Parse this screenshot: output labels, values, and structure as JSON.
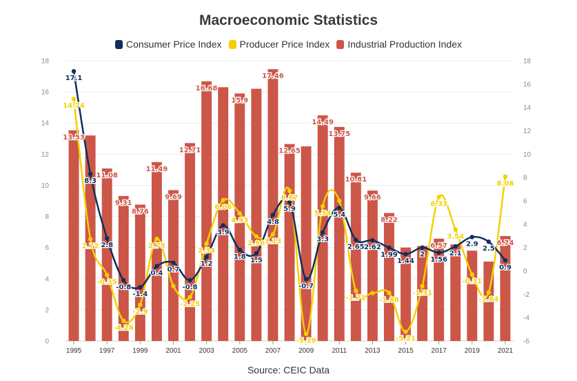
{
  "title": "Macroeconomic Statistics",
  "source": "Source: CEIC Data",
  "legend": [
    {
      "name": "Consumer Price Index",
      "color": "#0d2f5e"
    },
    {
      "name": "Producer Price Index",
      "color": "#f5d000"
    },
    {
      "name": "Industrial Production Index",
      "color": "#cc5647"
    }
  ],
  "chart_data": {
    "type": "bar",
    "title": "Macroeconomic Statistics",
    "x": [
      1995,
      1996,
      1997,
      1998,
      1999,
      2000,
      2001,
      2002,
      2003,
      2004,
      2005,
      2006,
      2007,
      2008,
      2009,
      2010,
      2011,
      2012,
      2013,
      2014,
      2015,
      2016,
      2017,
      2018,
      2019,
      2020,
      2021
    ],
    "xticks": [
      "1995",
      "1997",
      "1999",
      "2001",
      "2003",
      "2005",
      "2007",
      "2009",
      "2011",
      "2013",
      "2015",
      "2017",
      "2019",
      "2021"
    ],
    "y_left_lim": [
      0,
      18
    ],
    "y_left_ticks": [
      0,
      2,
      4,
      6,
      8,
      10,
      12,
      14,
      16,
      18
    ],
    "y_right_lim": [
      -6,
      18
    ],
    "y_right_ticks": [
      -6,
      -4,
      -2,
      0,
      2,
      4,
      6,
      8,
      10,
      12,
      14,
      16,
      18
    ],
    "grid": true,
    "legend_position": "top",
    "series": [
      {
        "name": "Industrial Production Index",
        "type": "bar",
        "axis": "left",
        "color": "#cc5647",
        "values": [
          13.53,
          13.2,
          11.08,
          9.31,
          8.76,
          11.49,
          9.69,
          12.71,
          16.68,
          16.3,
          15.9,
          16.2,
          17.46,
          12.65,
          12.5,
          14.49,
          13.75,
          10.81,
          9.66,
          8.22,
          6.0,
          6.1,
          6.57,
          6.2,
          5.8,
          5.1,
          6.74
        ],
        "labels": [
          "13.53",
          "",
          "11.08",
          "9.31",
          "8.76",
          "11.49",
          "9.69",
          "12.71",
          "16.68",
          "",
          "15.9",
          "",
          "17.46",
          "12.65",
          "",
          "14.49",
          "13.75",
          "10.81",
          "9.66",
          "8.22",
          "",
          "",
          "6.57",
          "",
          "",
          "",
          "6.74"
        ]
      },
      {
        "name": "Consumer Price Index",
        "type": "line",
        "axis": "right",
        "color": "#0d2f5e",
        "values": [
          17.1,
          8.3,
          2.8,
          -0.8,
          -1.4,
          0.4,
          0.7,
          -0.8,
          1.2,
          3.9,
          1.8,
          1.5,
          4.8,
          5.9,
          -0.7,
          3.3,
          5.4,
          2.65,
          2.62,
          1.99,
          1.44,
          2.0,
          1.56,
          2.1,
          2.9,
          2.5,
          0.9
        ],
        "labels": [
          "17.1",
          "8.3",
          "2.8",
          "-0.8",
          "-1.4",
          "0.4",
          "0.7",
          "-0.8",
          "1.2",
          "3.9",
          "1.8",
          "1.5",
          "4.8",
          "5.9",
          "-0.7",
          "3.3",
          "5.4",
          "2.65",
          "2.62",
          "1.99",
          "1.44",
          "2",
          "1.56",
          "2.1",
          "2.9",
          "2.5",
          "0.9"
        ]
      },
      {
        "name": "Producer Price Index",
        "type": "line",
        "axis": "right",
        "color": "#f5d000",
        "values": [
          14.74,
          2.72,
          -0.35,
          -4.28,
          -2.9,
          2.75,
          -1.3,
          -2.25,
          2.34,
          6.06,
          4.93,
          2.96,
          3.13,
          6.87,
          -5.39,
          5.54,
          6.0,
          -1.71,
          -1.9,
          -1.88,
          -5.21,
          -1.31,
          6.33,
          3.54,
          -0.31,
          -1.84,
          8.08
        ],
        "labels": [
          "14.74",
          "2.72",
          "-0.35",
          "-4.28",
          "-2.9",
          "2.75",
          "",
          "-2.25",
          "2.34",
          "6.06",
          "4.93",
          "2.96",
          "3.13",
          "6.87",
          "-5.39",
          "5.54",
          "",
          "-1.71",
          "",
          "-1.88",
          "-5.21",
          "-1.31",
          "6.33",
          "3.54",
          "-0.31",
          "-1.84",
          "8.08"
        ]
      }
    ]
  }
}
